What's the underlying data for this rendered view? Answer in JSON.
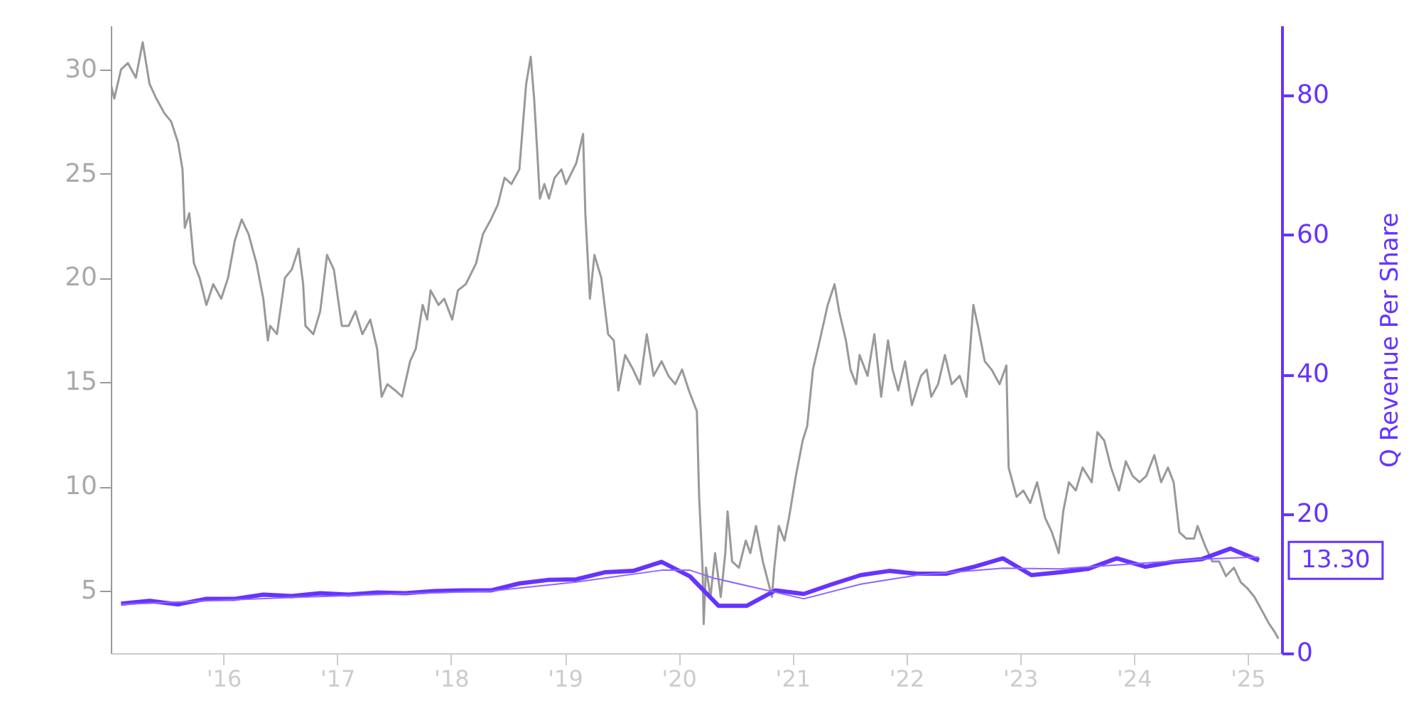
{
  "chart_data": {
    "type": "line",
    "xlim": [
      2015.01,
      2025.3
    ],
    "xticks": [
      {
        "value": 2016,
        "label": "'16"
      },
      {
        "value": 2017,
        "label": "'17"
      },
      {
        "value": 2018,
        "label": "'18"
      },
      {
        "value": 2019,
        "label": "'19"
      },
      {
        "value": 2020,
        "label": "'20"
      },
      {
        "value": 2021,
        "label": "'21"
      },
      {
        "value": 2022,
        "label": "'22"
      },
      {
        "value": 2023,
        "label": "'23"
      },
      {
        "value": 2024,
        "label": "'24"
      },
      {
        "value": 2025,
        "label": "'25"
      }
    ],
    "ylim": [
      2,
      32.1
    ],
    "yticks": [
      5,
      10,
      15,
      20,
      25,
      30
    ],
    "y2lim": [
      0,
      90
    ],
    "y2ticks": [
      0,
      20,
      40,
      60,
      80
    ],
    "y2label": "Q Revenue Per Share",
    "grid": false,
    "annotations": [
      "13.30"
    ],
    "series": [
      {
        "color": "#999999",
        "axis": "y",
        "x": [
          2015.01,
          2015.04,
          2015.1,
          2015.16,
          2015.23,
          2015.29,
          2015.35,
          2015.41,
          2015.48,
          2015.54,
          2015.6,
          2015.64,
          2015.66,
          2015.7,
          2015.74,
          2015.79,
          2015.85,
          2015.91,
          2015.98,
          2016.04,
          2016.1,
          2016.16,
          2016.22,
          2016.29,
          2016.35,
          2016.39,
          2016.41,
          2016.47,
          2016.54,
          2016.6,
          2016.66,
          2016.7,
          2016.72,
          2016.79,
          2016.85,
          2016.91,
          2016.97,
          2017.04,
          2017.1,
          2017.16,
          2017.22,
          2017.29,
          2017.35,
          2017.39,
          2017.44,
          2017.51,
          2017.57,
          2017.64,
          2017.69,
          2017.75,
          2017.79,
          2017.82,
          2017.89,
          2017.94,
          2018.01,
          2018.06,
          2018.13,
          2018.22,
          2018.28,
          2018.35,
          2018.41,
          2018.47,
          2018.53,
          2018.6,
          2018.66,
          2018.7,
          2018.73,
          2018.76,
          2018.78,
          2018.82,
          2018.86,
          2018.91,
          2018.97,
          2019.01,
          2019.1,
          2019.16,
          2019.18,
          2019.22,
          2019.26,
          2019.32,
          2019.38,
          2019.43,
          2019.47,
          2019.53,
          2019.6,
          2019.66,
          2019.72,
          2019.78,
          2019.85,
          2019.91,
          2019.97,
          2020.03,
          2020.09,
          2020.16,
          2020.18,
          2020.21,
          2020.22,
          2020.24,
          2020.28,
          2020.32,
          2020.37,
          2020.41,
          2020.43,
          2020.47,
          2020.53,
          2020.59,
          2020.63,
          2020.68,
          2020.74,
          2020.82,
          2020.84,
          2020.88,
          2020.93,
          2020.97,
          2021.03,
          2021.09,
          2021.13,
          2021.18,
          2021.24,
          2021.31,
          2021.37,
          2021.41,
          2021.47,
          2021.51,
          2021.56,
          2021.59,
          2021.66,
          2021.72,
          2021.78,
          2021.84,
          2021.88,
          2021.93,
          2021.99,
          2022.05,
          2022.13,
          2022.18,
          2022.22,
          2022.28,
          2022.34,
          2022.4,
          2022.47,
          2022.53,
          2022.59,
          2022.63,
          2022.69,
          2022.75,
          2022.82,
          2022.88,
          2022.9,
          2022.97,
          2023.03,
          2023.09,
          2023.15,
          2023.22,
          2023.28,
          2023.34,
          2023.38,
          2023.43,
          2023.49,
          2023.55,
          2023.63,
          2023.68,
          2023.74,
          2023.8,
          2023.87,
          2023.93,
          2023.99,
          2024.05,
          2024.11,
          2024.18,
          2024.24,
          2024.3,
          2024.35,
          2024.4,
          2024.46,
          2024.53,
          2024.56,
          2024.63,
          2024.69,
          2024.75,
          2024.81,
          2024.88,
          2024.94,
          2025.0,
          2025.06,
          2025.12,
          2025.19,
          2025.24,
          2025.27
        ],
        "values": [
          29.3,
          28.6,
          30.0,
          30.3,
          29.6,
          31.3,
          29.3,
          28.6,
          27.9,
          27.5,
          26.5,
          25.2,
          22.4,
          23.1,
          20.7,
          20.0,
          18.7,
          19.7,
          19.0,
          20.0,
          21.8,
          22.8,
          22.1,
          20.7,
          19.0,
          17.0,
          17.7,
          17.3,
          20.0,
          20.4,
          21.4,
          19.7,
          17.7,
          17.3,
          18.4,
          21.1,
          20.4,
          17.7,
          17.7,
          18.4,
          17.3,
          18.0,
          16.6,
          14.3,
          14.9,
          14.6,
          14.3,
          16.0,
          16.6,
          18.7,
          18.0,
          19.4,
          18.7,
          19.0,
          18.0,
          19.4,
          19.7,
          20.7,
          22.1,
          22.8,
          23.5,
          24.8,
          24.5,
          25.2,
          29.3,
          30.6,
          28.6,
          25.8,
          23.8,
          24.5,
          23.8,
          24.8,
          25.2,
          24.5,
          25.5,
          26.9,
          23.1,
          19.0,
          21.1,
          20.0,
          17.3,
          17.0,
          14.6,
          16.3,
          15.6,
          14.9,
          17.3,
          15.3,
          16.0,
          15.3,
          14.9,
          15.6,
          14.6,
          13.6,
          9.5,
          6.1,
          3.4,
          6.1,
          4.7,
          6.8,
          4.7,
          6.8,
          8.8,
          6.4,
          6.1,
          7.4,
          6.8,
          8.1,
          6.4,
          4.7,
          6.1,
          8.1,
          7.4,
          8.5,
          10.5,
          12.2,
          12.9,
          15.6,
          17.0,
          18.7,
          19.7,
          18.4,
          17.0,
          15.6,
          14.9,
          16.3,
          15.3,
          17.3,
          14.3,
          17.0,
          15.6,
          14.6,
          16.0,
          13.9,
          15.3,
          15.6,
          14.3,
          14.9,
          16.3,
          14.9,
          15.3,
          14.3,
          18.7,
          17.7,
          16.0,
          15.6,
          14.9,
          15.8,
          10.9,
          9.5,
          9.8,
          9.2,
          10.2,
          8.5,
          7.8,
          6.8,
          8.8,
          10.2,
          9.8,
          10.9,
          10.2,
          12.6,
          12.2,
          10.9,
          9.8,
          11.2,
          10.5,
          10.2,
          10.5,
          11.5,
          10.2,
          10.9,
          10.2,
          7.8,
          7.5,
          7.5,
          8.1,
          7.1,
          6.4,
          6.4,
          5.7,
          6.1,
          5.4,
          5.1,
          4.7,
          4.1,
          3.4,
          3.0,
          2.7
        ]
      },
      {
        "color": "#6633ff",
        "axis": "y2",
        "x": [
          2015.1,
          2015.35,
          2015.6,
          2015.85,
          2016.1,
          2016.35,
          2016.6,
          2016.85,
          2017.1,
          2017.35,
          2017.6,
          2017.85,
          2018.1,
          2018.35,
          2018.6,
          2018.85,
          2019.1,
          2019.35,
          2019.6,
          2019.85,
          2020.1,
          2020.35,
          2020.6,
          2020.85,
          2021.1,
          2021.35,
          2021.6,
          2021.85,
          2022.1,
          2022.35,
          2022.6,
          2022.85,
          2023.1,
          2023.35,
          2023.6,
          2023.85,
          2024.1,
          2024.35,
          2024.6,
          2024.85,
          2025.1
        ],
        "values": [
          7.1,
          7.5,
          7.0,
          7.8,
          7.8,
          8.4,
          8.2,
          8.6,
          8.4,
          8.7,
          8.6,
          8.9,
          9.0,
          9.0,
          10.0,
          10.5,
          10.6,
          11.6,
          11.8,
          13.1,
          11.0,
          6.8,
          6.8,
          9.0,
          8.5,
          9.9,
          11.2,
          11.8,
          11.4,
          11.4,
          12.4,
          13.6,
          11.2,
          11.6,
          12.1,
          13.6,
          12.4,
          13.1,
          13.5,
          15.0,
          13.3
        ]
      },
      {
        "color": "#8c66ff",
        "axis": "y2",
        "x": [
          2015.1,
          2016.6,
          2018.35,
          2019.1,
          2019.85,
          2020.1,
          2020.3,
          2021.1,
          2021.6,
          2022.1,
          2022.85,
          2023.35,
          2024.6,
          2025.1
        ],
        "values": [
          7.0,
          8.0,
          8.9,
          10.2,
          11.9,
          11.9,
          10.8,
          7.8,
          9.9,
          11.2,
          12.2,
          12.1,
          13.5,
          13.8
        ]
      }
    ]
  }
}
